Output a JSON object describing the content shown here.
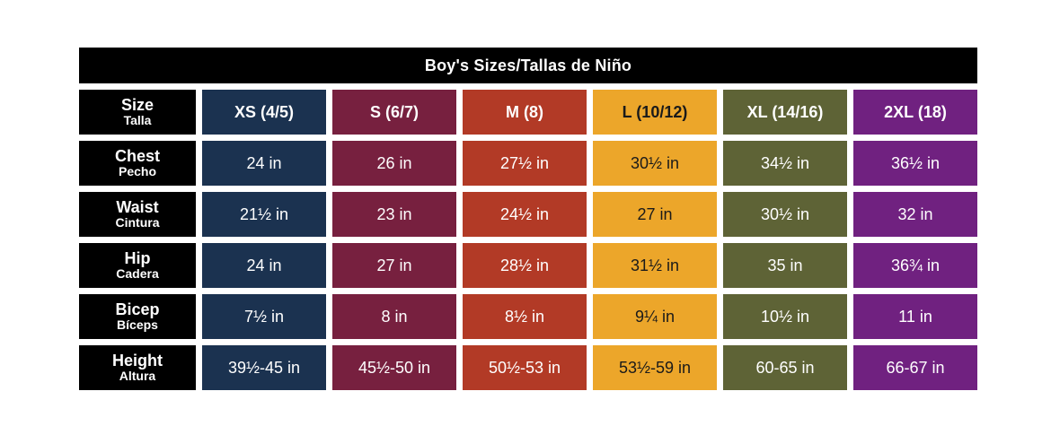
{
  "chart_data": {
    "type": "table",
    "title": "Boy's Sizes/Tallas de Niño",
    "corner": {
      "label": "Size",
      "sublabel": "Talla"
    },
    "columns": [
      {
        "header": "XS (4/5)",
        "bg": "#1b3250",
        "fg": "#ffffff"
      },
      {
        "header": "S (6/7)",
        "bg": "#77203f",
        "fg": "#ffffff"
      },
      {
        "header": "M (8)",
        "bg": "#b23a26",
        "fg": "#ffffff"
      },
      {
        "header": "L (10/12)",
        "bg": "#eca62a",
        "fg": "#1a1a1a"
      },
      {
        "header": "XL (14/16)",
        "bg": "#5e6336",
        "fg": "#ffffff"
      },
      {
        "header": "2XL (18)",
        "bg": "#702180",
        "fg": "#ffffff"
      }
    ],
    "rows": [
      {
        "label": "Chest",
        "sublabel": "Pecho",
        "values": [
          "24 in",
          "26 in",
          "27½ in",
          "30½ in",
          "34½ in",
          "36½ in"
        ]
      },
      {
        "label": "Waist",
        "sublabel": "Cintura",
        "values": [
          "21½ in",
          "23 in",
          "24½ in",
          "27 in",
          "30½ in",
          "32 in"
        ]
      },
      {
        "label": "Hip",
        "sublabel": "Cadera",
        "values": [
          "24 in",
          "27 in",
          "28½ in",
          "31½ in",
          "35 in",
          "36¾ in"
        ]
      },
      {
        "label": "Bicep",
        "sublabel": "Bíceps",
        "values": [
          "7½ in",
          "8 in",
          "8½ in",
          "9¼ in",
          "10½ in",
          "11 in"
        ]
      },
      {
        "label": "Height",
        "sublabel": "Altura",
        "values": [
          "39½-45 in",
          "45½-50 in",
          "50½-53 in",
          "53½-59 in",
          "60-65 in",
          "66-67 in"
        ]
      }
    ],
    "colors": {
      "title_bg": "#000000",
      "title_fg": "#ffffff",
      "row_label_bg": "#000000",
      "row_label_fg": "#ffffff",
      "page_bg": "#ffffff"
    }
  }
}
